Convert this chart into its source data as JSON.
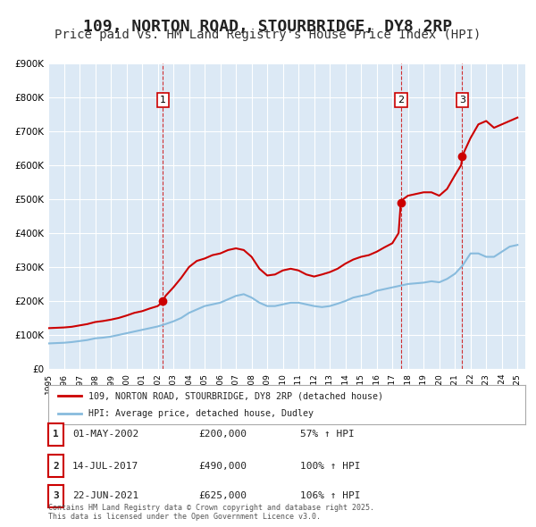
{
  "title": "109, NORTON ROAD, STOURBRIDGE, DY8 2RP",
  "subtitle": "Price paid vs. HM Land Registry's House Price Index (HPI)",
  "title_fontsize": 13,
  "subtitle_fontsize": 10,
  "background_color": "#ffffff",
  "plot_background_color": "#dce9f5",
  "grid_color": "#ffffff",
  "ylim": [
    0,
    900000
  ],
  "yticks": [
    0,
    100000,
    200000,
    300000,
    400000,
    500000,
    600000,
    700000,
    800000,
    900000
  ],
  "ylabel_fmt": "£{0}K",
  "xmin": 1995,
  "xmax": 2025.5,
  "sale_color": "#cc0000",
  "hpi_color": "#88bbdd",
  "sale_label": "109, NORTON ROAD, STOURBRIDGE, DY8 2RP (detached house)",
  "hpi_label": "HPI: Average price, detached house, Dudley",
  "transactions": [
    {
      "num": 1,
      "date": 2002.33,
      "price": 200000,
      "label": "01-MAY-2002",
      "price_label": "£200,000",
      "pct": "57% ↑ HPI"
    },
    {
      "num": 2,
      "date": 2017.54,
      "price": 490000,
      "label": "14-JUL-2017",
      "price_label": "£490,000",
      "pct": "100% ↑ HPI"
    },
    {
      "num": 3,
      "date": 2021.47,
      "price": 625000,
      "label": "22-JUN-2021",
      "price_label": "£625,000",
      "pct": "106% ↑ HPI"
    }
  ],
  "footnote": "Contains HM Land Registry data © Crown copyright and database right 2025.\nThis data is licensed under the Open Government Licence v3.0.",
  "hpi_data": {
    "years": [
      1995,
      1995.5,
      1996,
      1996.5,
      1997,
      1997.5,
      1998,
      1998.5,
      1999,
      1999.5,
      2000,
      2000.5,
      2001,
      2001.5,
      2002,
      2002.5,
      2003,
      2003.5,
      2004,
      2004.5,
      2005,
      2005.5,
      2006,
      2006.5,
      2007,
      2007.5,
      2008,
      2008.5,
      2009,
      2009.5,
      2010,
      2010.5,
      2011,
      2011.5,
      2012,
      2012.5,
      2013,
      2013.5,
      2014,
      2014.5,
      2015,
      2015.5,
      2016,
      2016.5,
      2017,
      2017.5,
      2018,
      2018.5,
      2019,
      2019.5,
      2020,
      2020.5,
      2021,
      2021.5,
      2022,
      2022.5,
      2023,
      2023.5,
      2024,
      2024.5,
      2025
    ],
    "values": [
      75000,
      76000,
      77000,
      79000,
      82000,
      85000,
      90000,
      92000,
      95000,
      100000,
      105000,
      110000,
      115000,
      120000,
      125000,
      132000,
      140000,
      150000,
      165000,
      175000,
      185000,
      190000,
      195000,
      205000,
      215000,
      220000,
      210000,
      195000,
      185000,
      185000,
      190000,
      195000,
      195000,
      190000,
      185000,
      182000,
      185000,
      192000,
      200000,
      210000,
      215000,
      220000,
      230000,
      235000,
      240000,
      245000,
      250000,
      252000,
      254000,
      258000,
      255000,
      265000,
      280000,
      305000,
      340000,
      340000,
      330000,
      330000,
      345000,
      360000,
      365000
    ]
  },
  "property_data": {
    "years": [
      1995,
      1995.5,
      1996,
      1996.5,
      1997,
      1997.5,
      1998,
      1998.5,
      1999,
      1999.5,
      2000,
      2000.5,
      2001,
      2001.5,
      2002,
      2002.25,
      2002.33,
      2002.5,
      2003,
      2003.5,
      2004,
      2004.5,
      2005,
      2005.5,
      2006,
      2006.5,
      2007,
      2007.5,
      2008,
      2008.5,
      2009,
      2009.5,
      2010,
      2010.5,
      2011,
      2011.5,
      2012,
      2012.5,
      2013,
      2013.5,
      2014,
      2014.5,
      2015,
      2015.5,
      2016,
      2016.5,
      2017,
      2017.4,
      2017.54,
      2017.7,
      2018,
      2018.5,
      2019,
      2019.5,
      2020,
      2020.5,
      2021,
      2021.4,
      2021.47,
      2021.6,
      2022,
      2022.5,
      2023,
      2023.5,
      2024,
      2024.5,
      2025
    ],
    "values": [
      120000,
      121000,
      122000,
      124000,
      128000,
      132000,
      138000,
      141000,
      145000,
      150000,
      157000,
      165000,
      170000,
      178000,
      185000,
      195000,
      200000,
      215000,
      240000,
      268000,
      300000,
      318000,
      325000,
      335000,
      340000,
      350000,
      355000,
      350000,
      330000,
      295000,
      275000,
      278000,
      290000,
      295000,
      290000,
      278000,
      272000,
      278000,
      285000,
      295000,
      310000,
      322000,
      330000,
      335000,
      345000,
      358000,
      370000,
      400000,
      490000,
      500000,
      510000,
      515000,
      520000,
      520000,
      510000,
      530000,
      570000,
      600000,
      625000,
      640000,
      680000,
      720000,
      730000,
      710000,
      720000,
      730000,
      740000
    ]
  }
}
